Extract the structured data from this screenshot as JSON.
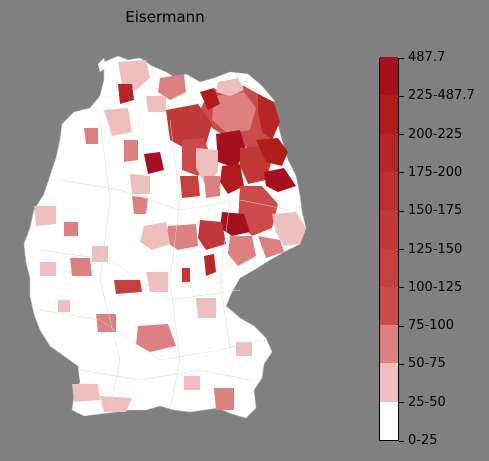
{
  "title": "Eisermann",
  "legend": {
    "classes": [
      {
        "label": "0-25",
        "color": "#ffffff"
      },
      {
        "label": "25-50",
        "color": "#eebfbf"
      },
      {
        "label": "50-75",
        "color": "#dc8080"
      },
      {
        "label": "75-100",
        "color": "#cd4a4a"
      },
      {
        "label": "100-125",
        "color": "#c63f3f"
      },
      {
        "label": "125-150",
        "color": "#c23737"
      },
      {
        "label": "150-175",
        "color": "#bd2f2f"
      },
      {
        "label": "175-200",
        "color": "#b72626"
      },
      {
        "label": "200-225",
        "color": "#b01c1c"
      },
      {
        "label": "225-487.7",
        "color": "#a50f20"
      },
      {
        "label": "487.7",
        "color": "#a50f20"
      }
    ]
  },
  "map": {
    "country": "Germany",
    "background_color": "#808080",
    "border_color": "#b0b0b0"
  }
}
